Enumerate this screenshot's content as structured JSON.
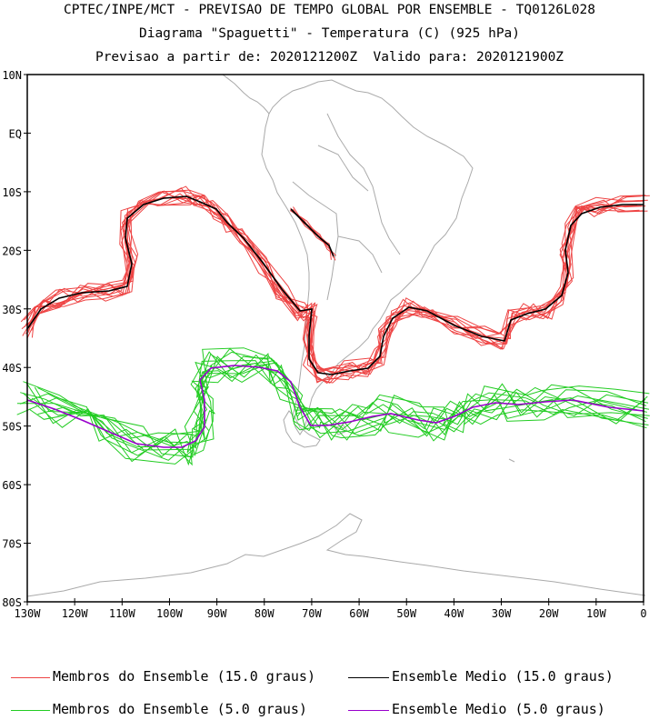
{
  "header": {
    "line1": "CPTEC/INPE/MCT - PREVISAO DE TEMPO GLOBAL POR ENSEMBLE - TQ0126L028",
    "line2": "Diagrama \"Spaguetti\" - Temperatura (C) (925 hPa)",
    "line3": "Previsao a partir de: 2020121200Z  Valido para: 2020121900Z"
  },
  "axes": {
    "lat_labels": [
      "10N",
      "EQ",
      "10S",
      "20S",
      "30S",
      "40S",
      "50S",
      "60S",
      "70S",
      "80S"
    ],
    "lon_labels": [
      "130W",
      "120W",
      "110W",
      "100W",
      "90W",
      "80W",
      "70W",
      "60W",
      "50W",
      "40W",
      "30W",
      "20W",
      "10W",
      "0"
    ]
  },
  "legend": {
    "members_15": "Membros do Ensemble (15.0 graus)",
    "mean_15": "Ensemble Medio (15.0 graus)",
    "members_5": "Membros do Ensemble (5.0 graus)",
    "mean_5": "Ensemble Medio (5.0 graus)"
  },
  "colors": {
    "members_15": "#ee4444",
    "mean_15": "#000000",
    "members_5": "#22cc22",
    "mean_5": "#9900cc",
    "coast": "#aaaaaa"
  }
}
